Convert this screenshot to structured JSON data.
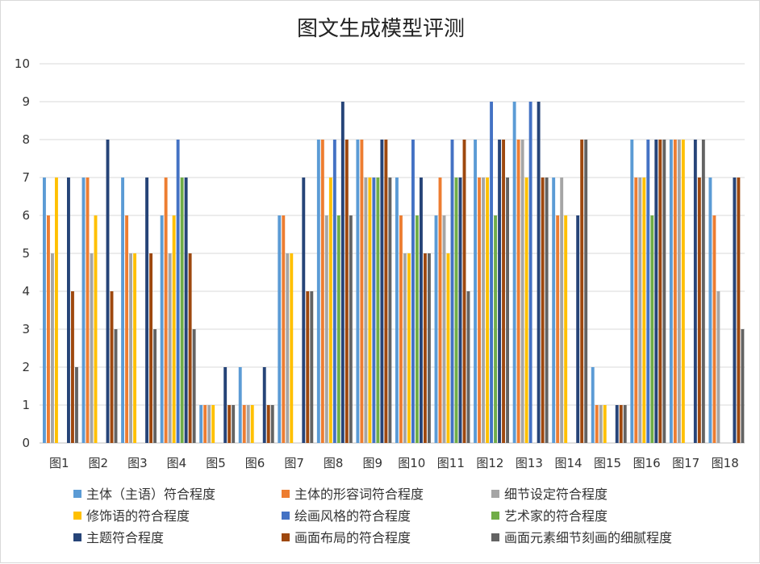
{
  "chart_data": {
    "type": "bar",
    "title": "图文生成模型评测",
    "xlabel": "",
    "ylabel": "",
    "ylim": [
      0,
      10
    ],
    "yticks": [
      0,
      1,
      2,
      3,
      4,
      5,
      6,
      7,
      8,
      9,
      10
    ],
    "grid": true,
    "legend_position": "bottom",
    "categories": [
      "图1",
      "图2",
      "图3",
      "图4",
      "图5",
      "图6",
      "图7",
      "图8",
      "图9",
      "图10",
      "图11",
      "图12",
      "图13",
      "图14",
      "图15",
      "图16",
      "图17",
      "图18"
    ],
    "series": [
      {
        "name": "主体（主语）符合程度",
        "color": "#5b9bd5",
        "values": [
          7,
          7,
          7,
          6,
          1,
          2,
          6,
          8,
          8,
          7,
          6,
          8,
          9,
          7,
          2,
          8,
          8,
          7
        ]
      },
      {
        "name": "主体的形容词符合程度",
        "color": "#ed7d31",
        "values": [
          6,
          7,
          6,
          7,
          1,
          1,
          6,
          8,
          8,
          6,
          7,
          7,
          8,
          6,
          1,
          7,
          8,
          6
        ]
      },
      {
        "name": "细节设定符合程度",
        "color": "#a5a5a5",
        "values": [
          5,
          5,
          5,
          5,
          1,
          1,
          5,
          6,
          7,
          5,
          6,
          7,
          8,
          7,
          1,
          7,
          8,
          4
        ]
      },
      {
        "name": "修饰语的符合程度",
        "color": "#ffc000",
        "values": [
          7,
          6,
          5,
          6,
          1,
          1,
          5,
          7,
          7,
          5,
          5,
          7,
          7,
          6,
          1,
          7,
          8,
          0
        ]
      },
      {
        "name": "绘画风格的符合程度",
        "color": "#4472c4",
        "values": [
          0,
          0,
          0,
          8,
          0,
          0,
          0,
          8,
          7,
          8,
          8,
          9,
          9,
          0,
          0,
          8,
          0,
          0
        ]
      },
      {
        "name": "艺术家的符合程度",
        "color": "#70ad47",
        "values": [
          0,
          0,
          0,
          7,
          0,
          0,
          0,
          6,
          7,
          6,
          7,
          6,
          0,
          0,
          0,
          6,
          0,
          0
        ]
      },
      {
        "name": "主题符合程度",
        "color": "#264478",
        "values": [
          7,
          8,
          7,
          7,
          2,
          2,
          7,
          9,
          8,
          7,
          7,
          8,
          9,
          6,
          1,
          8,
          8,
          7
        ]
      },
      {
        "name": "画面布局的符合程度",
        "color": "#9e480e",
        "values": [
          4,
          4,
          5,
          5,
          1,
          1,
          4,
          8,
          8,
          5,
          8,
          8,
          7,
          8,
          1,
          8,
          7,
          7
        ]
      },
      {
        "name": "画面元素细节刻画的细腻程度",
        "color": "#636363",
        "values": [
          2,
          3,
          3,
          3,
          1,
          1,
          4,
          6,
          7,
          5,
          4,
          7,
          7,
          8,
          1,
          8,
          8,
          3
        ]
      }
    ]
  }
}
